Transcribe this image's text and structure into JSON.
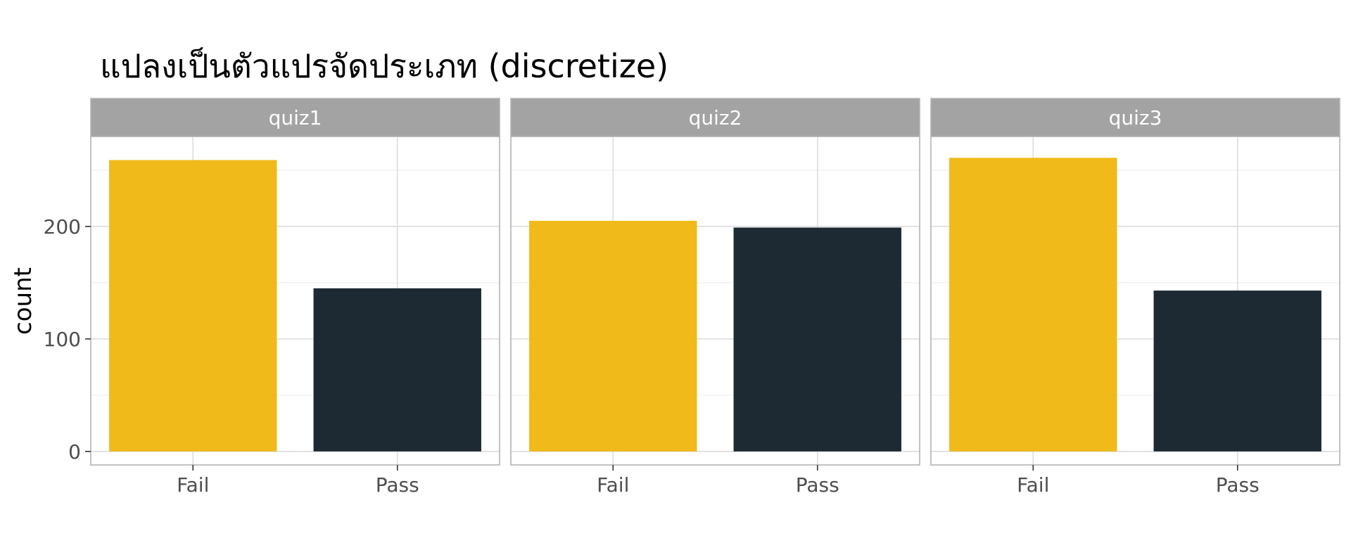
{
  "chart_data": {
    "type": "bar",
    "title": "แปลงเป็นตัวแปรจัดประเภท (discretize)",
    "xlabel": "",
    "ylabel": "count",
    "ylim": [
      -12,
      280
    ],
    "yticks": [
      0,
      100,
      200
    ],
    "grid": true,
    "facet_labels": [
      "quiz1",
      "quiz2",
      "quiz3"
    ],
    "categories": [
      "Fail",
      "Pass"
    ],
    "category_colors": {
      "Fail": "#F0BA1A",
      "Pass": "#1D2A33"
    },
    "facets": [
      {
        "name": "quiz1",
        "values": {
          "Fail": 259,
          "Pass": 145
        }
      },
      {
        "name": "quiz2",
        "values": {
          "Fail": 205,
          "Pass": 199
        }
      },
      {
        "name": "quiz3",
        "values": {
          "Fail": 261,
          "Pass": 143
        }
      }
    ]
  },
  "colors": {
    "strip_fill": "#A3A3A3",
    "strip_text": "#ffffff",
    "panel_border": "#B3B3B3",
    "grid_major": "#DCDCDC",
    "grid_minor": "#EFEFEF",
    "tick_text": "#4D4D4D",
    "title_text": "#000000"
  }
}
